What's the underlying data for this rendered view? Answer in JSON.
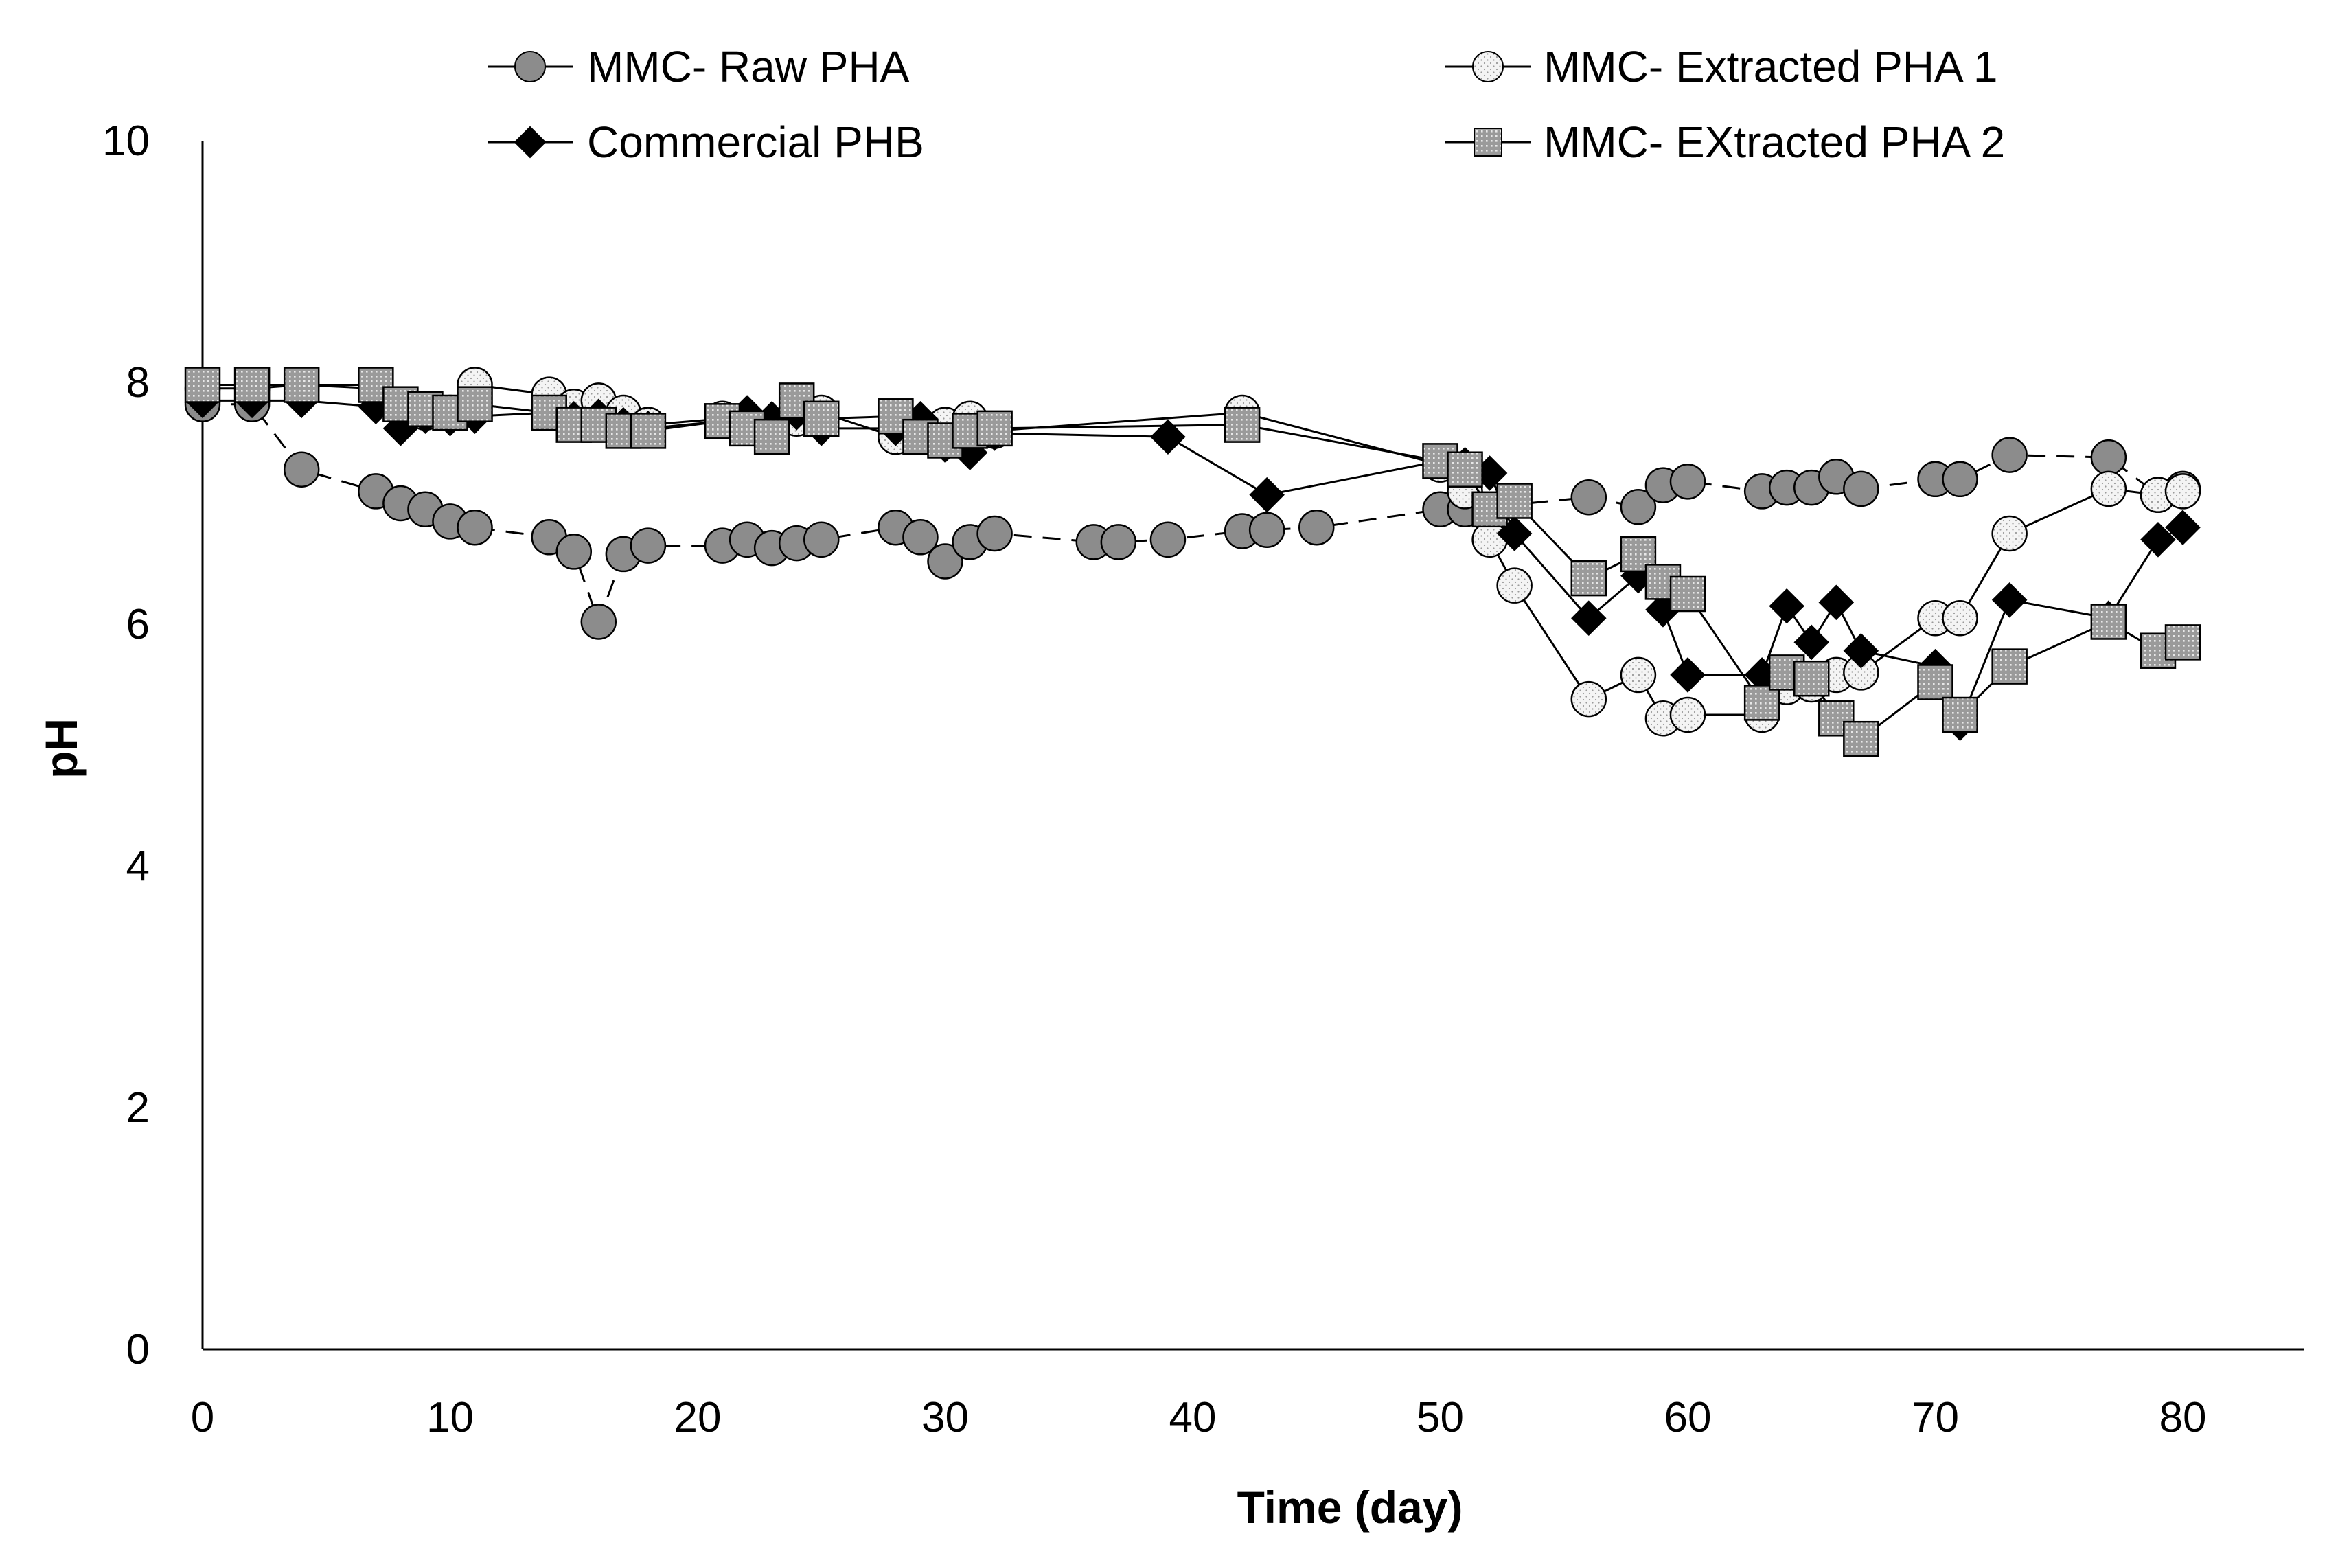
{
  "chart_data": {
    "type": "line",
    "title": "",
    "xlabel": "Time (day)",
    "ylabel": "pH",
    "xlim": [
      0,
      85
    ],
    "ylim": [
      0,
      10
    ],
    "xticks": [
      0,
      10,
      20,
      30,
      40,
      50,
      60,
      70,
      80
    ],
    "yticks": [
      0,
      2,
      4,
      6,
      8,
      10
    ],
    "x_tick_labels": [
      "0",
      "10",
      "20",
      "30",
      "40",
      "50",
      "60",
      "70",
      "80"
    ],
    "y_tick_labels": [
      "0",
      "2",
      "4",
      "6",
      "8",
      "10"
    ],
    "grid": false,
    "legend_position": "top",
    "series": [
      {
        "name": "MMC- Raw PHA",
        "marker": "circle-gray",
        "line": "dashed",
        "x": [
          0,
          2,
          4,
          7,
          8,
          9,
          10,
          11,
          14,
          15,
          16,
          17,
          18,
          21,
          22,
          23,
          24,
          25,
          28,
          29,
          30,
          31,
          32,
          36,
          37,
          39,
          42,
          43,
          45,
          50,
          51,
          56,
          58,
          59,
          60,
          63,
          64,
          65,
          66,
          67,
          70,
          71,
          73,
          77,
          79,
          80
        ],
        "y": [
          7.82,
          7.82,
          7.28,
          7.1,
          7.0,
          6.95,
          6.85,
          6.8,
          6.72,
          6.6,
          6.02,
          6.58,
          6.65,
          6.65,
          6.7,
          6.63,
          6.67,
          6.7,
          6.8,
          6.72,
          6.52,
          6.68,
          6.75,
          6.68,
          6.68,
          6.7,
          6.77,
          6.78,
          6.8,
          6.95,
          6.95,
          7.05,
          6.97,
          7.15,
          7.18,
          7.1,
          7.13,
          7.13,
          7.22,
          7.12,
          7.2,
          7.2,
          7.4,
          7.38,
          7.07,
          7.12
        ]
      },
      {
        "name": "MMC- Extracted PHA 1",
        "marker": "circle-white",
        "line": "solid",
        "x": [
          0,
          2,
          4,
          7,
          8,
          9,
          10,
          11,
          14,
          15,
          16,
          17,
          18,
          21,
          22,
          23,
          24,
          25,
          28,
          29,
          30,
          31,
          32,
          42,
          50,
          51,
          52,
          53,
          56,
          58,
          59,
          60,
          63,
          64,
          65,
          66,
          67,
          70,
          71,
          73,
          77,
          79,
          80
        ],
        "y": [
          7.95,
          7.95,
          7.98,
          7.95,
          7.8,
          7.75,
          7.75,
          7.98,
          7.9,
          7.8,
          7.85,
          7.75,
          7.65,
          7.7,
          7.68,
          7.62,
          7.7,
          7.75,
          7.55,
          7.6,
          7.65,
          7.7,
          7.6,
          7.75,
          7.32,
          7.1,
          6.7,
          6.32,
          5.38,
          5.58,
          5.22,
          5.25,
          5.25,
          5.48,
          5.5,
          5.58,
          5.6,
          6.05,
          6.05,
          6.75,
          7.12,
          7.07,
          7.1
        ]
      },
      {
        "name": "Commercial PHB",
        "marker": "diamond-black",
        "line": "solid",
        "x": [
          0,
          2,
          4,
          7,
          8,
          9,
          10,
          11,
          14,
          15,
          16,
          17,
          18,
          21,
          22,
          23,
          24,
          25,
          28,
          29,
          30,
          31,
          32,
          39,
          43,
          50,
          51,
          52,
          53,
          56,
          58,
          59,
          60,
          63,
          64,
          65,
          66,
          67,
          70,
          71,
          73,
          77,
          79,
          80
        ],
        "y": [
          7.85,
          7.85,
          7.85,
          7.8,
          7.62,
          7.72,
          7.7,
          7.72,
          7.75,
          7.7,
          7.72,
          7.65,
          7.62,
          7.68,
          7.75,
          7.7,
          7.75,
          7.62,
          7.62,
          7.7,
          7.48,
          7.42,
          7.58,
          7.55,
          7.07,
          7.35,
          7.32,
          7.25,
          6.75,
          6.05,
          6.4,
          6.12,
          5.58,
          5.58,
          6.15,
          5.85,
          6.18,
          5.78,
          5.65,
          5.18,
          6.2,
          6.05,
          6.7,
          6.8
        ]
      },
      {
        "name": "MMC- EXtracted PHA 2",
        "marker": "square-dotted",
        "line": "solid",
        "x": [
          0,
          2,
          4,
          7,
          8,
          9,
          10,
          11,
          14,
          15,
          16,
          17,
          18,
          21,
          22,
          23,
          24,
          25,
          28,
          29,
          30,
          31,
          32,
          42,
          50,
          51,
          52,
          53,
          56,
          58,
          59,
          60,
          63,
          64,
          65,
          66,
          67,
          70,
          71,
          73,
          77,
          79,
          80
        ],
        "y": [
          7.98,
          7.98,
          7.98,
          7.98,
          7.82,
          7.78,
          7.75,
          7.82,
          7.75,
          7.65,
          7.65,
          7.6,
          7.6,
          7.68,
          7.62,
          7.55,
          7.85,
          7.7,
          7.72,
          7.55,
          7.52,
          7.6,
          7.62,
          7.65,
          7.35,
          7.28,
          6.95,
          7.02,
          6.38,
          6.58,
          6.35,
          6.25,
          5.35,
          5.6,
          5.55,
          5.22,
          5.05,
          5.52,
          5.25,
          5.65,
          6.02,
          5.78,
          5.85
        ]
      }
    ]
  },
  "colors": {
    "raw_fill": "#8c8c8c",
    "ext1_fill": "#ffffff",
    "phb_fill": "#000000",
    "ext2_fill": "#a6a6a6",
    "line": "#000000"
  }
}
